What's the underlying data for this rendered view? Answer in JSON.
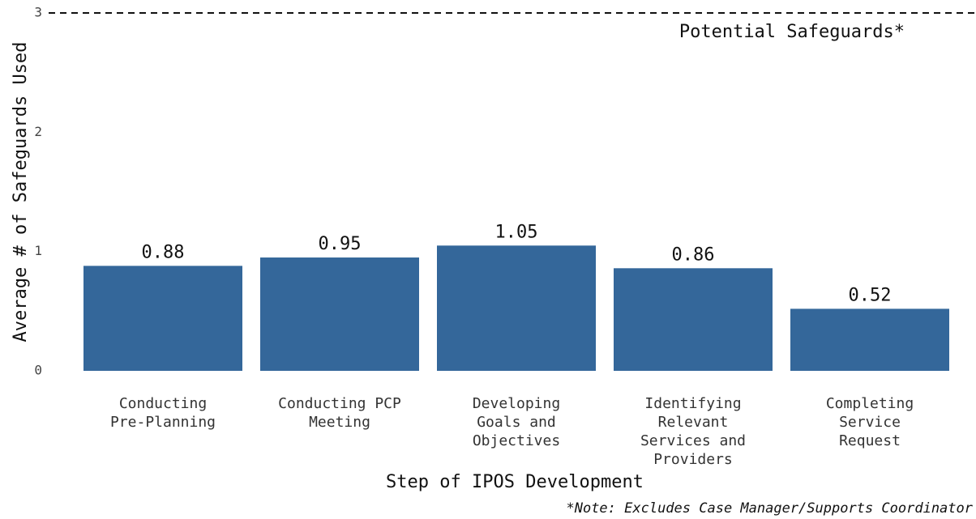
{
  "chart_data": {
    "type": "bar",
    "categories": [
      [
        "Conducting",
        "Pre-Planning"
      ],
      [
        "Conducting PCP",
        "Meeting"
      ],
      [
        "Developing",
        "Goals and",
        "Objectives"
      ],
      [
        "Identifying",
        "Relevant",
        "Services and",
        "Providers"
      ],
      [
        "Completing",
        "Service",
        "Request"
      ]
    ],
    "values": [
      0.88,
      0.95,
      1.05,
      0.86,
      0.52
    ],
    "color": "#34679a",
    "ylim": [
      0,
      3
    ],
    "yticks": [
      0,
      1,
      2,
      3
    ],
    "grid": false,
    "ylabel": "Average # of Safeguards Used",
    "xlabel": "Step of IPOS Development",
    "reference_line": {
      "value": 3,
      "label": "Potential Safeguards*"
    },
    "note": "*Note: Excludes Case Manager/Supports Coordinator"
  }
}
